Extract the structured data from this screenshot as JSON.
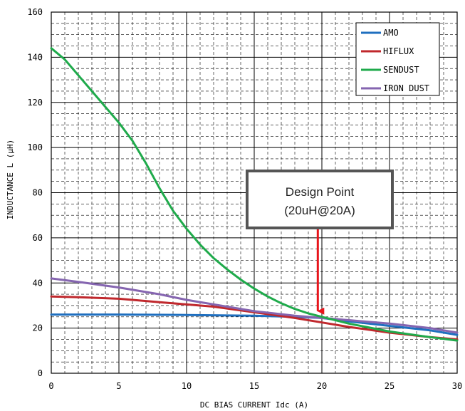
{
  "chart_data": {
    "type": "line",
    "title": "",
    "xlabel": "DC BIAS CURRENT Idc (A)",
    "ylabel": "INDUCTANCE L (μH)",
    "xlim": [
      0,
      30
    ],
    "ylim": [
      0,
      160
    ],
    "x_ticks": [
      "0",
      "5",
      "10",
      "15",
      "20",
      "25",
      "30"
    ],
    "y_ticks": [
      "0",
      "20",
      "40",
      "60",
      "80",
      "100",
      "120",
      "140",
      "160"
    ],
    "grid": "major solid, minor dashed",
    "legend_position": "top-right",
    "series": [
      {
        "name": "AMO",
        "color": "#1f6fbf",
        "x": [
          0,
          5,
          10,
          15,
          18,
          20,
          22,
          25,
          28,
          30
        ],
        "y": [
          26,
          26,
          25.8,
          25.5,
          25,
          24.5,
          23,
          21,
          19,
          17
        ]
      },
      {
        "name": "HIFLUX",
        "color": "#c0282d",
        "x": [
          0,
          2,
          5,
          8,
          10,
          12,
          15,
          18,
          20,
          22,
          25,
          28,
          30
        ],
        "y": [
          34,
          33.7,
          33,
          31.5,
          30.5,
          29.5,
          27,
          24.5,
          22.5,
          20.5,
          18,
          16,
          15
        ]
      },
      {
        "name": "SENDUST",
        "color": "#1faa4b",
        "x": [
          0,
          1,
          2,
          3,
          4,
          5,
          6,
          7,
          8,
          9,
          10,
          11,
          12,
          13,
          14,
          15,
          16,
          17,
          18,
          19,
          20,
          22,
          25,
          28,
          30
        ],
        "y": [
          144,
          139,
          132,
          125,
          118,
          111,
          103,
          93,
          82,
          72,
          64,
          57,
          51,
          46,
          41.5,
          37.5,
          34,
          31,
          28.5,
          26.5,
          25,
          22,
          18.5,
          16,
          14.5
        ]
      },
      {
        "name": "IRON DUST",
        "color": "#8565b0",
        "x": [
          0,
          2,
          5,
          8,
          10,
          12,
          15,
          18,
          20,
          22,
          25,
          28,
          30
        ],
        "y": [
          42,
          40.5,
          38,
          35,
          32.5,
          30.5,
          27.5,
          25.5,
          24.5,
          23.5,
          22,
          20,
          18
        ]
      }
    ],
    "annotations": [
      {
        "text_line1": "Design Point",
        "text_line2": "(20uH@20A)",
        "arrow_x": 19.7,
        "arrow_y": 25,
        "arrow_color": "#e8141b"
      }
    ]
  }
}
